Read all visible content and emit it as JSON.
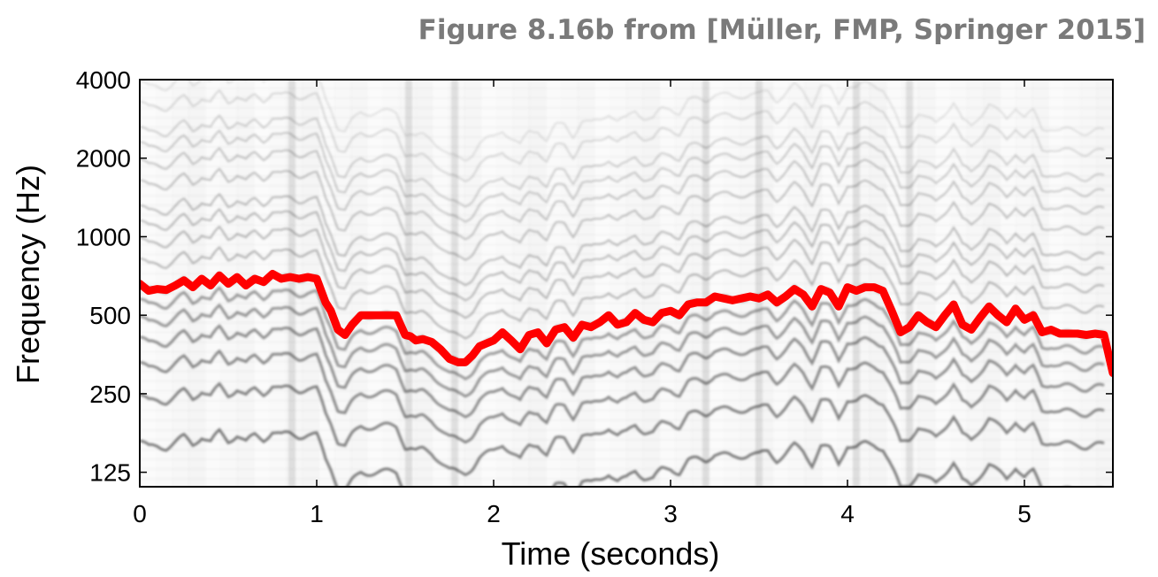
{
  "credit": "Figure 8.16b from [Müller, FMP, Springer 2015]",
  "colors": {
    "f0_line": "#ff0000",
    "spectrogram": "#000000",
    "frame": "#000000"
  },
  "chart_data": {
    "type": "line",
    "title": "",
    "xlabel": "Time (seconds)",
    "ylabel": "Frequency (Hz)",
    "xlim": [
      0,
      5.5
    ],
    "ylim": [
      110,
      4000
    ],
    "yscale": "log2",
    "xticks": [
      0,
      1,
      2,
      3,
      4,
      5
    ],
    "xtick_labels": [
      "0",
      "1",
      "2",
      "3",
      "4",
      "5"
    ],
    "yticks": [
      125,
      250,
      500,
      1000,
      2000,
      4000
    ],
    "ytick_labels": [
      "125",
      "250",
      "500",
      "1000",
      "2000",
      "4000"
    ],
    "grid": false,
    "background": "grayscale log-frequency spectrogram",
    "series": [
      {
        "x": [
          0,
          0.05,
          0.1,
          0.15,
          0.2,
          0.25,
          0.3,
          0.35,
          0.4,
          0.45,
          0.5,
          0.55,
          0.6,
          0.65,
          0.7,
          0.75,
          0.8,
          0.85,
          0.9,
          0.95,
          1.0,
          1.05,
          1.08,
          1.12,
          1.16,
          1.2,
          1.25,
          1.3,
          1.35,
          1.4,
          1.45,
          1.5,
          1.53,
          1.56,
          1.6,
          1.65,
          1.7,
          1.75,
          1.8,
          1.84,
          1.88,
          1.92,
          1.96,
          2.0,
          2.05,
          2.1,
          2.15,
          2.2,
          2.25,
          2.3,
          2.35,
          2.4,
          2.45,
          2.5,
          2.55,
          2.6,
          2.65,
          2.7,
          2.75,
          2.8,
          2.85,
          2.9,
          2.95,
          3.0,
          3.05,
          3.1,
          3.15,
          3.2,
          3.25,
          3.3,
          3.35,
          3.4,
          3.45,
          3.5,
          3.55,
          3.6,
          3.65,
          3.7,
          3.75,
          3.8,
          3.85,
          3.9,
          3.95,
          4.0,
          4.05,
          4.1,
          4.15,
          4.2,
          4.25,
          4.3,
          4.35,
          4.4,
          4.45,
          4.5,
          4.55,
          4.6,
          4.65,
          4.7,
          4.75,
          4.8,
          4.85,
          4.9,
          4.95,
          5.0,
          5.05,
          5.1,
          5.15,
          5.2,
          5.25,
          5.3,
          5.35,
          5.4,
          5.45,
          5.5
        ],
        "y": [
          660,
          620,
          630,
          625,
          650,
          680,
          640,
          690,
          650,
          710,
          660,
          700,
          650,
          690,
          670,
          720,
          690,
          700,
          690,
          700,
          690,
          560,
          520,
          440,
          420,
          460,
          500,
          500,
          500,
          500,
          500,
          420,
          415,
          400,
          405,
          395,
          370,
          340,
          330,
          330,
          350,
          380,
          390,
          400,
          430,
          400,
          370,
          420,
          430,
          390,
          440,
          450,
          410,
          460,
          450,
          470,
          500,
          460,
          470,
          510,
          480,
          470,
          510,
          520,
          500,
          550,
          560,
          560,
          590,
          580,
          570,
          580,
          590,
          580,
          600,
          560,
          590,
          630,
          600,
          540,
          630,
          610,
          540,
          640,
          620,
          640,
          640,
          620,
          520,
          430,
          450,
          500,
          470,
          450,
          500,
          550,
          460,
          440,
          490,
          540,
          500,
          470,
          530,
          480,
          500,
          430,
          440,
          425,
          425,
          425,
          420,
          425,
          420,
          300
        ]
      }
    ]
  }
}
